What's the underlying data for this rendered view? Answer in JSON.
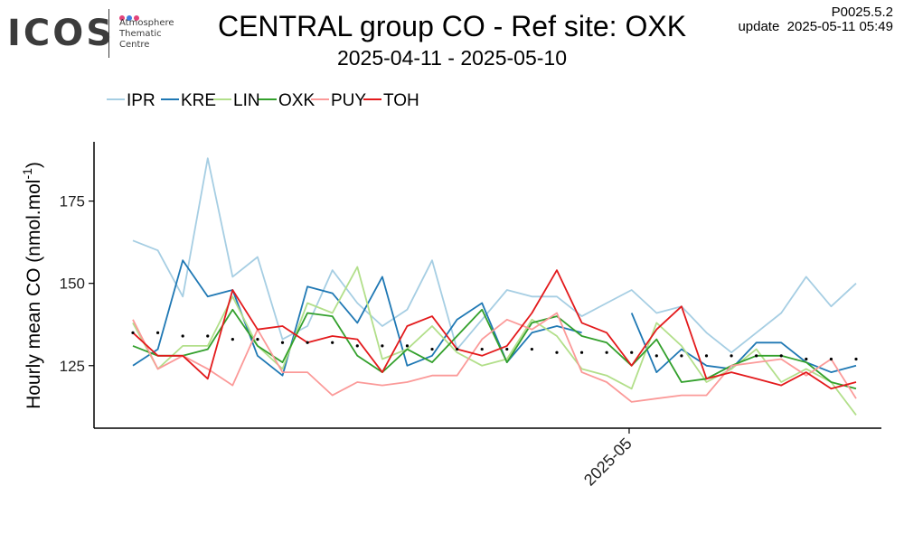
{
  "logo": {
    "wordmark": "ICOS",
    "lines": [
      "Atmosphere",
      "Thematic",
      "Centre"
    ],
    "dot_colors": [
      "#e2437a",
      "#3f7fe0",
      "#e2437a"
    ]
  },
  "header": {
    "version": "P0025.5.2",
    "update_label": "update",
    "update_time": "2025-05-11 05:49"
  },
  "chart_data": {
    "type": "line",
    "title": "CENTRAL group CO - Ref site: OXK",
    "subtitle": "2025-04-11 - 2025-05-10",
    "ylabel_main": "Hourly mean  CO (nmol.mol",
    "ylabel_sup": "-1",
    "ylabel_end": ")",
    "y_ticks": [
      125,
      150,
      175
    ],
    "ylim": [
      106,
      193
    ],
    "xlim": [
      -1,
      30.5
    ],
    "x_ticks": [
      {
        "label": "2025-05",
        "index": 19.9
      }
    ],
    "legend_placement": "top-left",
    "grid": false,
    "series": [
      {
        "name": "IPR",
        "color": "#a6cee3",
        "values": [
          163,
          160,
          146,
          188,
          152,
          158,
          133,
          137,
          154,
          144,
          137,
          142,
          157,
          130,
          139,
          148,
          146,
          146,
          140,
          144,
          148,
          141,
          143,
          135,
          129,
          135,
          141,
          152,
          143,
          150
        ]
      },
      {
        "name": "KRE",
        "color": "#1f78b4",
        "values": [
          125,
          130,
          157,
          146,
          148,
          128,
          122,
          149,
          147,
          138,
          152,
          125,
          128,
          139,
          144,
          126,
          135,
          137,
          135,
          null,
          141,
          123,
          130,
          125,
          124,
          132,
          132,
          126,
          123,
          125
        ]
      },
      {
        "name": "LIN",
        "color": "#b2df8a",
        "values": [
          138,
          124,
          131,
          131,
          146,
          131,
          124,
          144,
          141,
          155,
          127,
          130,
          137,
          129,
          125,
          127,
          139,
          134,
          124,
          122,
          118,
          138,
          131,
          120,
          124,
          130,
          120,
          124,
          120,
          110
        ]
      },
      {
        "name": "OXK",
        "color": "#33a02c",
        "values": [
          131,
          128,
          128,
          130,
          142,
          131,
          126,
          141,
          140,
          128,
          123,
          130,
          126,
          134,
          142,
          126,
          138,
          140,
          134,
          132,
          125,
          133,
          120,
          121,
          125,
          128,
          128,
          126,
          120,
          118
        ]
      },
      {
        "name": "PUY",
        "color": "#fb9a99",
        "values": [
          139,
          124,
          128,
          124,
          119,
          136,
          123,
          123,
          116,
          120,
          119,
          120,
          122,
          122,
          133,
          139,
          136,
          141,
          123,
          120,
          114,
          115,
          116,
          116,
          125,
          126,
          127,
          122,
          127,
          115
        ]
      },
      {
        "name": "TOH",
        "color": "#e31a1c",
        "values": [
          135,
          128,
          128,
          121,
          148,
          136,
          137,
          132,
          134,
          133,
          123,
          137,
          140,
          130,
          128,
          131,
          141,
          154,
          138,
          135,
          125,
          136,
          143,
          121,
          123,
          121,
          119,
          123,
          118,
          120
        ]
      },
      {
        "name": "",
        "color": "#000000",
        "style": "dots",
        "values": [
          135,
          135,
          134,
          134,
          133,
          133,
          132,
          132,
          132,
          131,
          131,
          131,
          130,
          130,
          130,
          130,
          130,
          129,
          129,
          129,
          129,
          128,
          128,
          128,
          128,
          128,
          128,
          127,
          127,
          127
        ]
      }
    ]
  }
}
